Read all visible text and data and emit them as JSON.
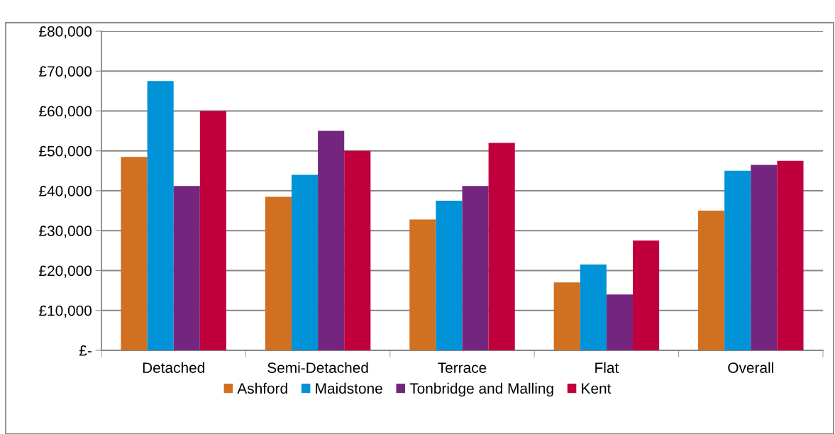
{
  "chart_data": {
    "type": "bar",
    "categories": [
      "Detached",
      "Semi-Detached",
      "Terrace",
      "Flat",
      "Overall"
    ],
    "series": [
      {
        "name": "Ashford",
        "color": "#d07020",
        "values": [
          48500,
          38500,
          32800,
          17000,
          35000
        ]
      },
      {
        "name": "Maidstone",
        "color": "#0093d7",
        "values": [
          67500,
          44000,
          37500,
          21500,
          45000
        ]
      },
      {
        "name": "Tonbridge and Malling",
        "color": "#74267e",
        "values": [
          41200,
          55000,
          41200,
          14000,
          46500
        ]
      },
      {
        "name": "Kent",
        "color": "#c0003c",
        "values": [
          60000,
          50000,
          52000,
          27500,
          47500
        ]
      }
    ],
    "ylim": [
      0,
      80000
    ],
    "yticks": [
      {
        "value": 0,
        "label": "£-"
      },
      {
        "value": 10000,
        "label": "£10,000"
      },
      {
        "value": 20000,
        "label": "£20,000"
      },
      {
        "value": 30000,
        "label": "£30,000"
      },
      {
        "value": 40000,
        "label": "£40,000"
      },
      {
        "value": 50000,
        "label": "£50,000"
      },
      {
        "value": 60000,
        "label": "£60,000"
      },
      {
        "value": 70000,
        "label": "£70,000"
      },
      {
        "value": 80000,
        "label": "£80,000"
      }
    ],
    "grid": "y",
    "legend": "bottom"
  }
}
